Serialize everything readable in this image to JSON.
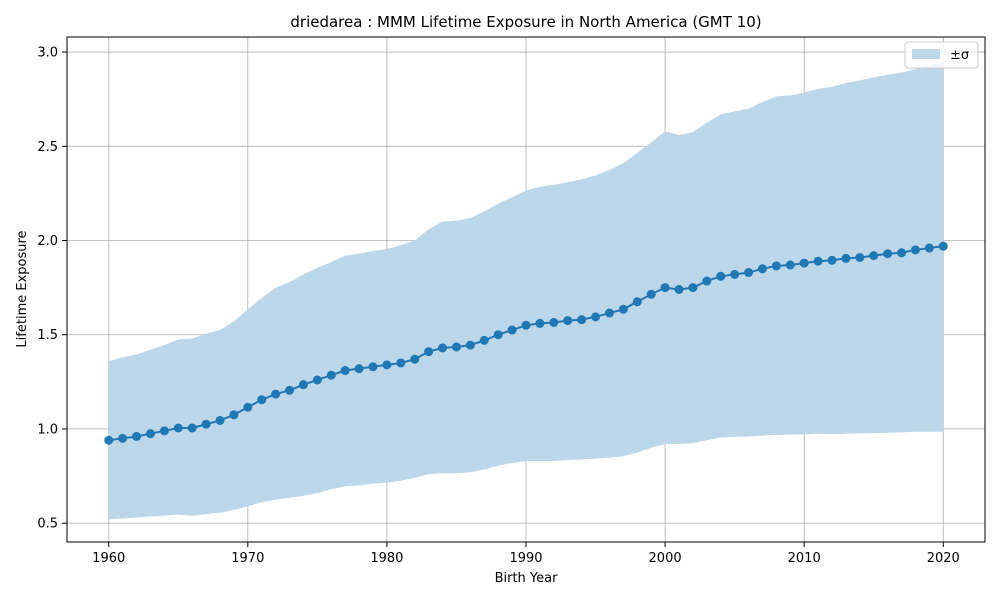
{
  "chart_data": {
    "type": "line",
    "title": "driedarea : MMM Lifetime Exposure in North America (GMT 10)",
    "xlabel": "Birth Year",
    "ylabel": "Lifetime Exposure",
    "xlim": [
      1957,
      2023
    ],
    "ylim": [
      0.4,
      3.08
    ],
    "xticks": [
      1960,
      1970,
      1980,
      1990,
      2000,
      2010,
      2020
    ],
    "xtick_labels": [
      "1960",
      "1970",
      "1980",
      "1990",
      "2000",
      "2010",
      "2020"
    ],
    "yticks": [
      0.5,
      1.0,
      1.5,
      2.0,
      2.5,
      3.0
    ],
    "ytick_labels": [
      "0.5",
      "1.0",
      "1.5",
      "2.0",
      "2.5",
      "3.0"
    ],
    "grid": true,
    "legend": {
      "position": "top-right",
      "entries": [
        "±σ"
      ]
    },
    "colors": {
      "line": "#1f77b4",
      "band": "#bcd6ea",
      "grid": "#b0b0b0",
      "axis": "#000000"
    },
    "x": [
      1960,
      1961,
      1962,
      1963,
      1964,
      1965,
      1966,
      1967,
      1968,
      1969,
      1970,
      1971,
      1972,
      1973,
      1974,
      1975,
      1976,
      1977,
      1978,
      1979,
      1980,
      1981,
      1982,
      1983,
      1984,
      1985,
      1986,
      1987,
      1988,
      1989,
      1990,
      1991,
      1992,
      1993,
      1994,
      1995,
      1996,
      1997,
      1998,
      1999,
      2000,
      2001,
      2002,
      2003,
      2004,
      2005,
      2006,
      2007,
      2008,
      2009,
      2010,
      2011,
      2012,
      2013,
      2014,
      2015,
      2016,
      2017,
      2018,
      2019,
      2020
    ],
    "series": [
      {
        "values": [
          0.94,
          0.95,
          0.96,
          0.975,
          0.99,
          1.005,
          1.005,
          1.025,
          1.045,
          1.075,
          1.115,
          1.155,
          1.185,
          1.205,
          1.235,
          1.26,
          1.285,
          1.31,
          1.32,
          1.33,
          1.34,
          1.35,
          1.37,
          1.41,
          1.43,
          1.435,
          1.445,
          1.47,
          1.5,
          1.525,
          1.55,
          1.56,
          1.565,
          1.575,
          1.58,
          1.595,
          1.615,
          1.635,
          1.675,
          1.715,
          1.75,
          1.74,
          1.75,
          1.785,
          1.81,
          1.82,
          1.83,
          1.85,
          1.865,
          1.87,
          1.88,
          1.89,
          1.895,
          1.905,
          1.91,
          1.92,
          1.93,
          1.935,
          1.95,
          1.96,
          1.97
        ]
      }
    ],
    "band": {
      "name": "±σ",
      "upper": [
        1.36,
        1.38,
        1.395,
        1.42,
        1.445,
        1.475,
        1.48,
        1.505,
        1.525,
        1.57,
        1.635,
        1.695,
        1.75,
        1.78,
        1.82,
        1.855,
        1.885,
        1.92,
        1.93,
        1.945,
        1.955,
        1.975,
        2.0,
        2.06,
        2.1,
        2.105,
        2.12,
        2.155,
        2.195,
        2.23,
        2.265,
        2.285,
        2.295,
        2.31,
        2.325,
        2.345,
        2.375,
        2.41,
        2.465,
        2.52,
        2.58,
        2.56,
        2.575,
        2.625,
        2.67,
        2.685,
        2.7,
        2.735,
        2.765,
        2.77,
        2.785,
        2.805,
        2.815,
        2.835,
        2.85,
        2.865,
        2.88,
        2.89,
        2.91,
        2.93,
        2.95
      ],
      "lower": [
        0.52,
        0.525,
        0.53,
        0.535,
        0.54,
        0.545,
        0.54,
        0.548,
        0.555,
        0.57,
        0.59,
        0.61,
        0.625,
        0.635,
        0.645,
        0.66,
        0.68,
        0.695,
        0.7,
        0.71,
        0.715,
        0.725,
        0.74,
        0.76,
        0.765,
        0.765,
        0.77,
        0.785,
        0.805,
        0.82,
        0.83,
        0.83,
        0.83,
        0.835,
        0.838,
        0.842,
        0.848,
        0.855,
        0.875,
        0.9,
        0.92,
        0.92,
        0.925,
        0.94,
        0.955,
        0.958,
        0.96,
        0.965,
        0.968,
        0.97,
        0.972,
        0.975,
        0.972,
        0.975,
        0.977,
        0.978,
        0.98,
        0.982,
        0.985,
        0.985,
        0.985
      ]
    }
  }
}
